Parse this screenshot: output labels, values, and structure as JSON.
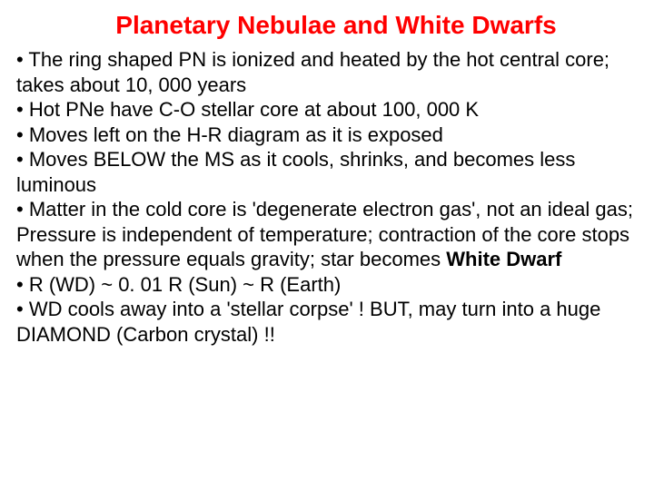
{
  "slide": {
    "title": "Planetary Nebulae and White Dwarfs",
    "title_color": "#ff0000",
    "title_fontsize": 28,
    "title_fontweight": "bold",
    "body_fontsize": 22,
    "body_color": "#000000",
    "background_color": "#ffffff",
    "bullets": [
      {
        "pre": "•  The ring shaped PN is ionized and heated by the hot central core; takes about 10, 000 years",
        "bold": "",
        "post": ""
      },
      {
        "pre": "• Hot PNe have C-O stellar core  at about 100, 000 K",
        "bold": "",
        "post": ""
      },
      {
        "pre": "•  Moves left on the H-R diagram as it is exposed",
        "bold": "",
        "post": ""
      },
      {
        "pre": "• Moves BELOW the MS as it cools, shrinks, and becomes less luminous",
        "bold": "",
        "post": ""
      },
      {
        "pre": "• Matter in the cold core is 'degenerate electron gas', not an ideal gas; Pressure is independent of temperature; contraction of the core stops when the pressure equals gravity; star becomes ",
        "bold": "White Dwarf",
        "post": ""
      },
      {
        "pre": "• R (WD) ~ 0. 01 R (Sun) ~ R (Earth)",
        "bold": "",
        "post": ""
      },
      {
        "pre": "• WD cools away into a 'stellar corpse' ! BUT, may turn into a huge DIAMOND (Carbon crystal) !!",
        "bold": "",
        "post": ""
      }
    ]
  }
}
